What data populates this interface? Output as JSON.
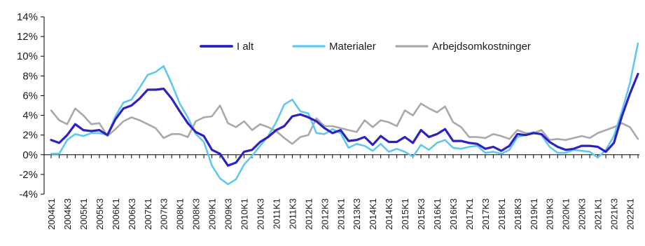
{
  "chart_data": {
    "type": "line",
    "title": "",
    "xlabel": "",
    "ylabel": "",
    "ylim": [
      -4,
      14
    ],
    "yticks": [
      -4,
      -2,
      0,
      2,
      4,
      6,
      8,
      10,
      12,
      14
    ],
    "ytick_labels": [
      "-4%",
      "-2%",
      "0%",
      "2%",
      "4%",
      "6%",
      "8%",
      "10%",
      "12%",
      "14%"
    ],
    "grid": false,
    "legend_position": "top",
    "x": [
      "2004K1",
      "2004K2",
      "2004K3",
      "2004K4",
      "2005K1",
      "2005K2",
      "2005K3",
      "2005K4",
      "2006K1",
      "2006K2",
      "2006K3",
      "2006K4",
      "2007K1",
      "2007K2",
      "2007K3",
      "2007K4",
      "2008K1",
      "2008K2",
      "2008K3",
      "2008K4",
      "2009K1",
      "2009K2",
      "2009K3",
      "2009K4",
      "2010K1",
      "2010K2",
      "2010K3",
      "2010K4",
      "2011K1",
      "2011K2",
      "2011K3",
      "2011K4",
      "2012K1",
      "2012K2",
      "2012K3",
      "2012K4",
      "2013K1",
      "2013K2",
      "2013K3",
      "2013K4",
      "2014K1",
      "2014K2",
      "2014K3",
      "2014K4",
      "2015K1",
      "2015K2",
      "2015K3",
      "2015K4",
      "2016K1",
      "2016K2",
      "2016K3",
      "2016K4",
      "2017K1",
      "2017K2",
      "2017K3",
      "2017K4",
      "2018K1",
      "2018K2",
      "2018K3",
      "2018K4",
      "2019K1",
      "2019K2",
      "2019K3",
      "2019K4",
      "2020K1",
      "2020K2",
      "2020K3",
      "2020K4",
      "2021K1",
      "2021K2",
      "2021K3",
      "2021K4",
      "2022K1",
      "2022K2"
    ],
    "x_tick_labels": [
      "2004K1",
      "2004K3",
      "2005K1",
      "2005K3",
      "2006K1",
      "2006K3",
      "2007K1",
      "2007K3",
      "2008K1",
      "2008K3",
      "2009K1",
      "2009K3",
      "2010K1",
      "2010K3",
      "2011K1",
      "2011K3",
      "2012K1",
      "2012K3",
      "2013K1",
      "2013K3",
      "2014K1",
      "2014K3",
      "2015K1",
      "2015K3",
      "2016K1",
      "2016K3",
      "2017K1",
      "2017K3",
      "2018K1",
      "2018K3",
      "2019K1",
      "2019K3",
      "2020K1",
      "2020K3",
      "2021K1",
      "2021K3",
      "2022K1"
    ],
    "series": [
      {
        "name": "I alt",
        "color": "#2d22c0",
        "width": 3.2,
        "values": [
          1.5,
          1.2,
          2.0,
          3.1,
          2.5,
          2.4,
          2.5,
          2.0,
          3.6,
          4.7,
          5.0,
          5.7,
          6.6,
          6.6,
          6.7,
          5.7,
          4.4,
          3.2,
          2.3,
          1.9,
          0.5,
          0.1,
          -1.1,
          -0.8,
          0.3,
          0.5,
          1.3,
          1.8,
          2.5,
          2.9,
          3.9,
          4.1,
          3.8,
          3.4,
          2.7,
          2.2,
          2.5,
          1.4,
          1.5,
          1.8,
          1.0,
          1.9,
          1.3,
          1.3,
          1.8,
          1.2,
          2.5,
          1.8,
          2.1,
          2.6,
          1.4,
          1.4,
          1.2,
          1.1,
          0.6,
          0.8,
          0.4,
          0.9,
          2.1,
          2.0,
          2.2,
          2.1,
          1.3,
          0.8,
          0.5,
          0.6,
          0.9,
          0.9,
          0.8,
          0.3,
          1.2,
          3.9,
          6.2,
          8.2
        ]
      },
      {
        "name": "Materialer",
        "color": "#5fc8f0",
        "width": 2.6,
        "values": [
          0.1,
          0.1,
          1.5,
          2.1,
          1.9,
          2.2,
          2.2,
          2.0,
          3.9,
          5.3,
          5.6,
          6.8,
          8.1,
          8.4,
          9.0,
          7.2,
          5.2,
          3.8,
          2.1,
          1.3,
          -1.1,
          -2.4,
          -3.0,
          -2.5,
          -1.0,
          -0.1,
          0.9,
          1.9,
          3.3,
          5.1,
          5.6,
          4.4,
          4.2,
          2.2,
          2.1,
          2.6,
          2.2,
          0.7,
          1.1,
          0.9,
          0.4,
          1.1,
          0.3,
          0.6,
          0.3,
          -0.2,
          1.0,
          0.5,
          1.2,
          1.5,
          0.7,
          0.6,
          0.8,
          0.9,
          0.2,
          0.3,
          0.1,
          0.5,
          1.8,
          2.0,
          2.3,
          2.0,
          0.8,
          0.2,
          0.2,
          0.5,
          0.4,
          0.3,
          -0.3,
          0.5,
          1.9,
          4.4,
          7.3,
          11.3
        ]
      },
      {
        "name": "Arbejdsomkostninger",
        "color": "#a7a9ac",
        "width": 2.6,
        "values": [
          4.5,
          3.5,
          3.1,
          4.7,
          4.0,
          3.1,
          3.2,
          1.9,
          2.6,
          3.4,
          3.8,
          3.5,
          3.1,
          2.7,
          1.7,
          2.1,
          2.1,
          1.8,
          3.4,
          3.8,
          3.9,
          5.0,
          3.2,
          2.8,
          3.4,
          2.5,
          3.1,
          2.8,
          2.4,
          1.7,
          1.1,
          1.8,
          2.0,
          3.7,
          2.9,
          2.9,
          2.7,
          2.5,
          2.3,
          3.5,
          2.8,
          3.5,
          3.3,
          2.9,
          4.5,
          4.0,
          5.2,
          4.7,
          4.3,
          4.9,
          3.3,
          2.8,
          1.8,
          1.8,
          1.7,
          2.1,
          1.9,
          1.6,
          2.5,
          2.2,
          2.2,
          2.5,
          1.5,
          1.6,
          1.5,
          1.7,
          1.9,
          1.7,
          2.2,
          2.5,
          2.8,
          3.2,
          2.8,
          1.6
        ]
      }
    ]
  }
}
